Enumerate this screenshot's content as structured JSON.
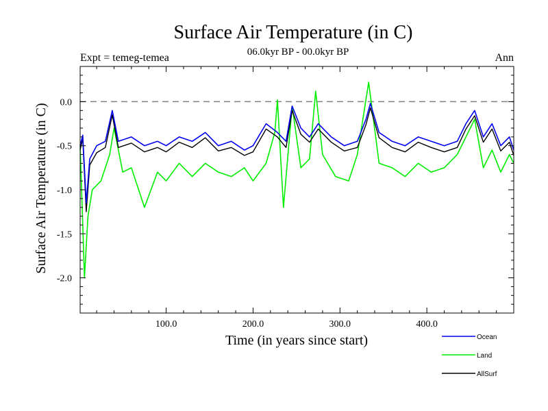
{
  "chart_data": {
    "type": "line",
    "title": "Surface Air Temperature (in C)",
    "subtitle": "06.0kyr BP - 00.0kyr BP",
    "experiment_label": "Expt = temeg-temea",
    "season_label": "Ann",
    "xlabel": "Time (in years since start)",
    "ylabel": "Surface Air Temperature (in C)",
    "xlim": [
      1,
      500
    ],
    "ylim": [
      -2.4,
      0.4
    ],
    "x_ticks": [
      100,
      200,
      300,
      400
    ],
    "x_tick_labels": [
      "100.0",
      "200.0",
      "300.0",
      "400.0"
    ],
    "y_ticks": [
      -2.0,
      -1.5,
      -1.0,
      -0.5,
      0.0
    ],
    "y_tick_labels": [
      "-2.0",
      "-1.5",
      "-1.0",
      "-0.5",
      "0.0"
    ],
    "reference_line": 0.0,
    "legend_position": "bottom-right",
    "series": [
      {
        "name": "Ocean",
        "color": "#0000ee",
        "x": [
          1,
          4,
          8,
          12,
          20,
          30,
          38,
          45,
          60,
          75,
          90,
          100,
          115,
          130,
          145,
          160,
          175,
          190,
          200,
          215,
          228,
          238,
          245,
          255,
          265,
          275,
          290,
          305,
          320,
          330,
          335,
          345,
          360,
          375,
          390,
          405,
          420,
          435,
          445,
          455,
          465,
          475,
          485,
          495,
          500
        ],
        "values": [
          -0.5,
          -0.38,
          -1.15,
          -0.65,
          -0.5,
          -0.45,
          -0.1,
          -0.45,
          -0.4,
          -0.5,
          -0.45,
          -0.5,
          -0.4,
          -0.45,
          -0.35,
          -0.5,
          -0.45,
          -0.55,
          -0.5,
          -0.25,
          -0.35,
          -0.45,
          -0.05,
          -0.3,
          -0.4,
          -0.25,
          -0.4,
          -0.5,
          -0.45,
          -0.2,
          -0.02,
          -0.35,
          -0.45,
          -0.5,
          -0.4,
          -0.45,
          -0.5,
          -0.45,
          -0.25,
          -0.1,
          -0.4,
          -0.25,
          -0.5,
          -0.4,
          -0.55
        ]
      },
      {
        "name": "Land",
        "color": "#00ee00",
        "x": [
          1,
          4,
          6,
          10,
          15,
          25,
          35,
          40,
          50,
          60,
          75,
          90,
          100,
          115,
          130,
          145,
          160,
          175,
          190,
          200,
          215,
          225,
          228,
          235,
          245,
          255,
          265,
          272,
          280,
          295,
          310,
          320,
          333,
          345,
          360,
          375,
          390,
          405,
          420,
          435,
          445,
          455,
          465,
          475,
          485,
          495,
          500
        ],
        "values": [
          -0.5,
          -1.4,
          -2.0,
          -1.3,
          -1.0,
          -0.9,
          -0.6,
          -0.3,
          -0.8,
          -0.75,
          -1.2,
          -0.8,
          -0.9,
          -0.7,
          -0.85,
          -0.7,
          -0.8,
          -0.85,
          -0.75,
          -0.9,
          -0.7,
          -0.35,
          0.02,
          -1.2,
          -0.05,
          -0.75,
          -0.65,
          0.12,
          -0.6,
          -0.85,
          -0.9,
          -0.6,
          0.22,
          -0.7,
          -0.75,
          -0.85,
          -0.7,
          -0.8,
          -0.75,
          -0.6,
          -0.4,
          -0.2,
          -0.75,
          -0.55,
          -0.8,
          -0.6,
          -0.7
        ]
      },
      {
        "name": "AllSurf",
        "color": "#000000",
        "x": [
          1,
          4,
          8,
          12,
          20,
          30,
          38,
          45,
          60,
          75,
          90,
          100,
          115,
          130,
          145,
          160,
          175,
          190,
          200,
          215,
          228,
          238,
          245,
          255,
          265,
          275,
          290,
          305,
          320,
          330,
          335,
          345,
          360,
          375,
          390,
          405,
          420,
          435,
          445,
          455,
          465,
          475,
          485,
          495,
          500
        ],
        "values": [
          -0.55,
          -0.42,
          -1.25,
          -0.72,
          -0.58,
          -0.52,
          -0.15,
          -0.52,
          -0.47,
          -0.57,
          -0.52,
          -0.57,
          -0.46,
          -0.52,
          -0.41,
          -0.56,
          -0.52,
          -0.61,
          -0.57,
          -0.31,
          -0.4,
          -0.52,
          -0.1,
          -0.37,
          -0.46,
          -0.31,
          -0.46,
          -0.56,
          -0.52,
          -0.26,
          -0.07,
          -0.41,
          -0.52,
          -0.57,
          -0.46,
          -0.52,
          -0.57,
          -0.52,
          -0.31,
          -0.16,
          -0.46,
          -0.31,
          -0.56,
          -0.46,
          -0.61
        ]
      }
    ]
  }
}
